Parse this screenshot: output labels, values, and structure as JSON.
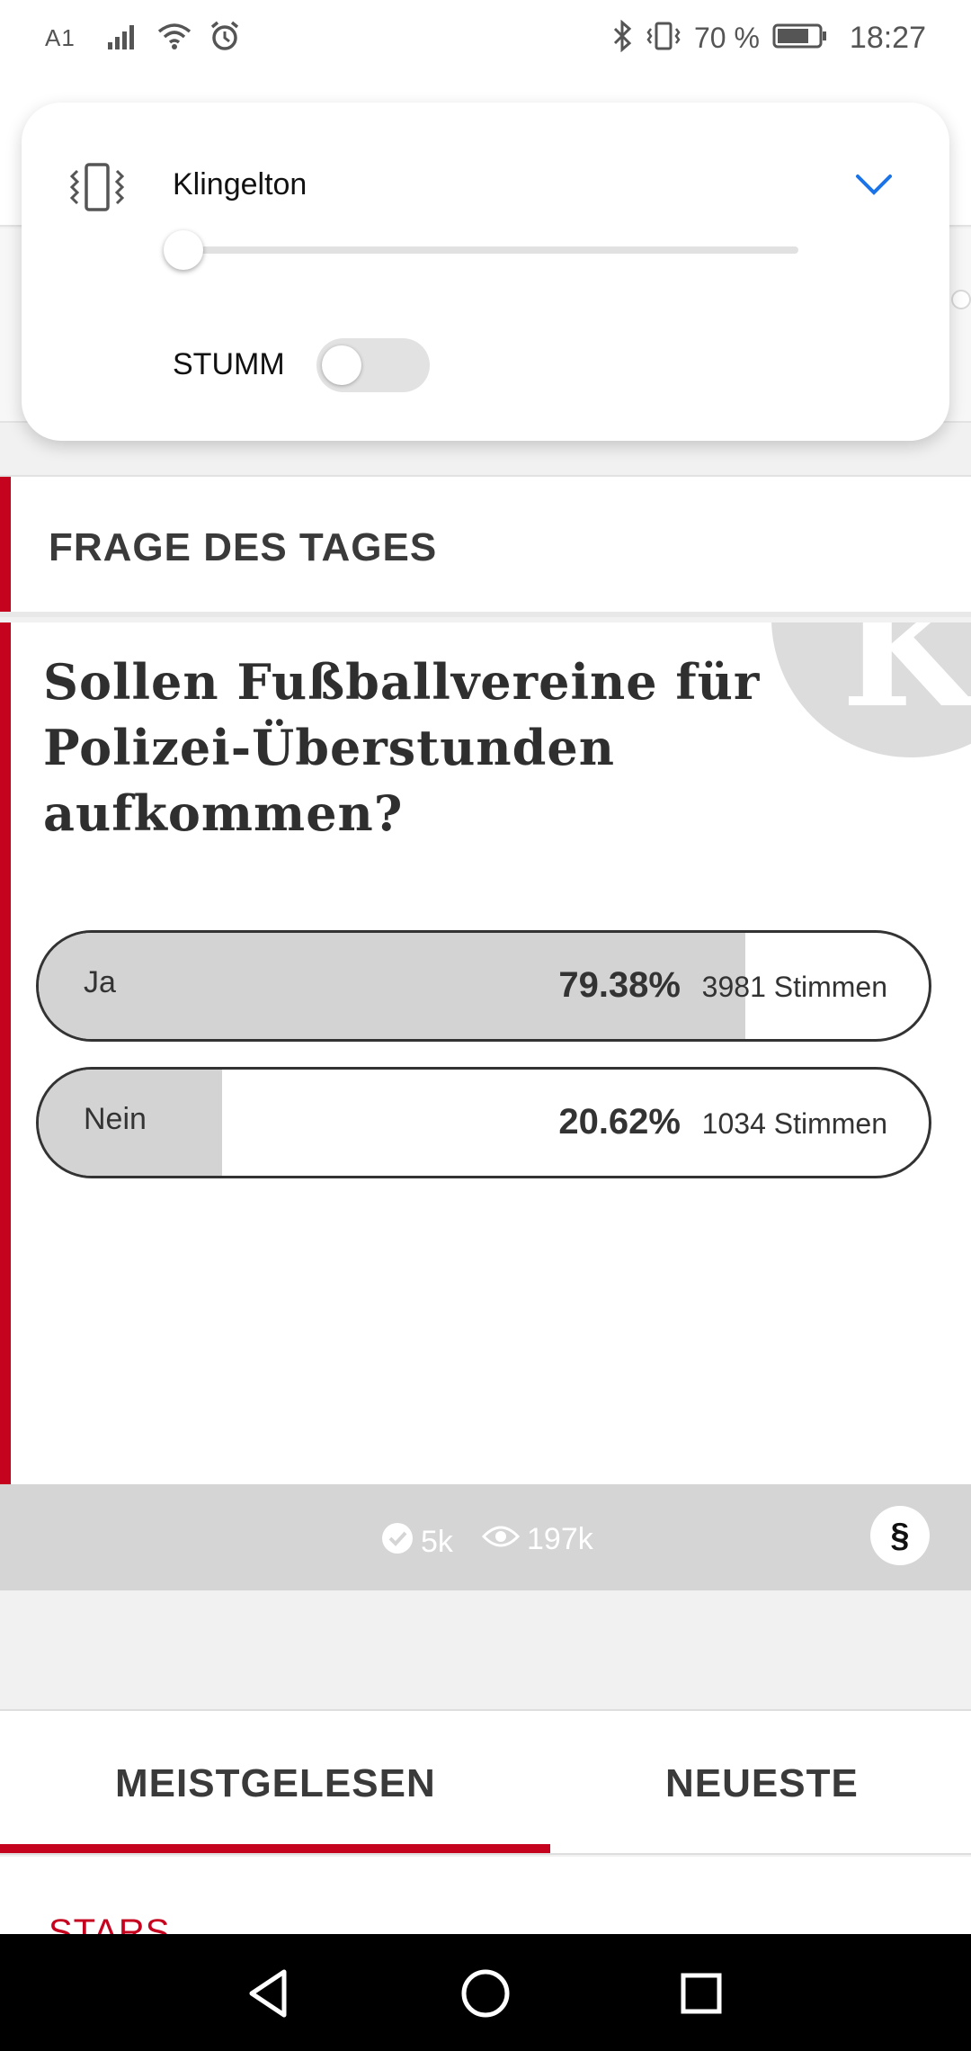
{
  "status_bar": {
    "carrier": "A1",
    "battery_percent": "70 %",
    "time": "18:27"
  },
  "volume_panel": {
    "title": "Klingelton",
    "mute_label": "STUMM",
    "slider_level": 0,
    "mute_enabled": false,
    "accent_color": "#1a73e8"
  },
  "question_card": {
    "section_title": "FRAGE DES TAGES",
    "question": "Sollen Fußballvereine für Polizei-Überstunden aufkommen?",
    "watermark_letter": "K",
    "accent_color": "#c5031f",
    "options": [
      {
        "label": "Ja",
        "percent": "79.38%",
        "votes": "3981 Stimmen",
        "share": 0.7938
      },
      {
        "label": "Nein",
        "percent": "20.62%",
        "votes": "1034 Stimmen",
        "share": 0.2062
      }
    ]
  },
  "stats": {
    "votes_count": "5k",
    "views_count": "197k",
    "paragraph_symbol": "§"
  },
  "tabs": {
    "items": [
      {
        "label": "MEISTGELESEN",
        "active": true
      },
      {
        "label": "NEUESTE",
        "active": false
      }
    ]
  },
  "list": {
    "first_category": "STARS"
  },
  "icons": {
    "status_left": [
      "signal-icon",
      "wifi-icon",
      "alarm-icon"
    ],
    "status_right": [
      "bluetooth-icon",
      "vibrate-icon",
      "battery-icon"
    ],
    "nav": [
      "back-icon",
      "home-icon",
      "recents-icon"
    ]
  }
}
